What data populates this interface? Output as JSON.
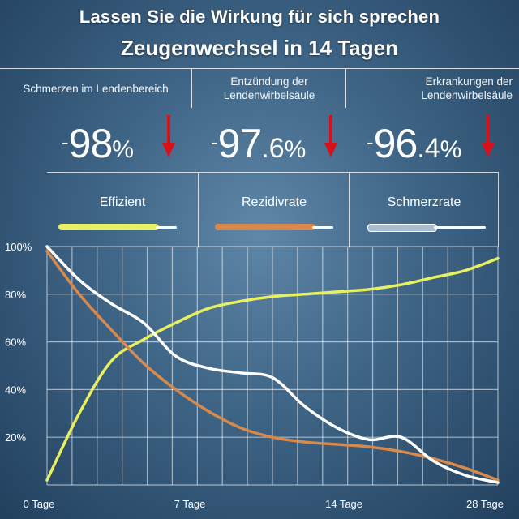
{
  "header": {
    "title": "Lassen Sie die Wirkung für sich sprechen",
    "subtitle": "Zeugenwechsel in 14 Tagen"
  },
  "stats": [
    {
      "label": "Schmerzen im Lendenbereich",
      "minus": "-",
      "number": "98",
      "decimal": "",
      "percent": "%"
    },
    {
      "label_line1": "Entzündung der",
      "label_line2": "Lendenwirbelsäule",
      "minus": "-",
      "number": "97",
      "decimal": ".6",
      "percent": "%"
    },
    {
      "label_line1": "Erkrankungen der",
      "label_line2": "Lendenwirbelsäule",
      "minus": "-",
      "number": "96",
      "decimal": ".4",
      "percent": "%"
    }
  ],
  "colors": {
    "effizient": "#e8f060",
    "rezidivrate": "#d9894a",
    "schmerzrate": "#ffffff",
    "arrow": "#d8101a"
  },
  "chart_data": {
    "type": "line",
    "x_ticks": [
      "0 Tage",
      "7 Tage",
      "14 Tage",
      "28 Tage"
    ],
    "y_ticks": [
      "100%",
      "80%",
      "60%",
      "40%",
      "20%"
    ],
    "xlim": [
      0,
      28
    ],
    "ylim": [
      0,
      100
    ],
    "grid": true,
    "legend": "top",
    "series": [
      {
        "name": "Effizient",
        "x": [
          0,
          2,
          4,
          6,
          8,
          10,
          12,
          14,
          16,
          18,
          20,
          22,
          24,
          26,
          28
        ],
        "values": [
          2,
          30,
          52,
          61,
          68,
          74,
          77,
          79,
          80,
          81,
          82,
          84,
          87,
          90,
          95
        ]
      },
      {
        "name": "Rezidivrate",
        "x": [
          0,
          2,
          4,
          6,
          8,
          10,
          12,
          14,
          16,
          18,
          20,
          22,
          24,
          26,
          28
        ],
        "values": [
          98,
          80,
          65,
          51,
          40,
          31,
          24,
          20,
          18,
          17,
          16,
          14,
          11,
          7,
          2
        ]
      },
      {
        "name": "Schmerzrate",
        "x": [
          0,
          2,
          4,
          6,
          8,
          10,
          12,
          14,
          16,
          18,
          20,
          22,
          24,
          26,
          28
        ],
        "values": [
          100,
          86,
          76,
          68,
          54,
          49,
          47,
          45,
          33,
          24,
          19,
          20,
          10,
          4,
          1
        ]
      }
    ]
  }
}
